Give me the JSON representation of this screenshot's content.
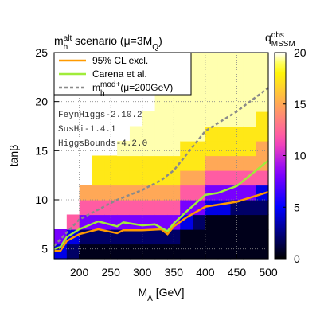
{
  "chart_data": {
    "type": "heatmap",
    "title": [
      {
        "text": "m"
      },
      {
        "text": "h",
        "shift": "sub"
      },
      {
        "text": "alt",
        "shift": "super"
      },
      {
        "text": " scenario (μ=3M"
      },
      {
        "text": "Q",
        "shift": "sub"
      },
      {
        "text": ")"
      }
    ],
    "xlabel": [
      {
        "text": "M"
      },
      {
        "text": "A",
        "shift": "sub"
      },
      {
        "text": " [GeV]"
      }
    ],
    "ylabel": [
      {
        "text": "tanβ"
      }
    ],
    "colorbar_label": [
      {
        "text": "q"
      },
      {
        "text": "obs",
        "shift": "super"
      },
      {
        "text": "MSSM",
        "shift": "sub"
      }
    ],
    "xlim": [
      160,
      500
    ],
    "xticks": [
      200,
      250,
      300,
      350,
      400,
      450,
      500
    ],
    "ylim": [
      4,
      25
    ],
    "yticks": [
      5,
      10,
      15,
      20,
      25
    ],
    "clim": [
      0,
      20
    ],
    "cticks": [
      0,
      5,
      10,
      15,
      20
    ],
    "grid": true,
    "x_edges": [
      160,
      180,
      200,
      220,
      240,
      260,
      280,
      300,
      320,
      340,
      360,
      380,
      400,
      420,
      440,
      460,
      480,
      500
    ],
    "y_edges": [
      4,
      5.5,
      7,
      8.5,
      10,
      11.5,
      13,
      14.5,
      16,
      17.5,
      19,
      20.5,
      22,
      23.5,
      25
    ],
    "z": [
      [
        4.5,
        8,
        null,
        null,
        null,
        null,
        null,
        null,
        null,
        null,
        null,
        null,
        null,
        null
      ],
      [
        2,
        4.5,
        12,
        null,
        null,
        null,
        null,
        null,
        null,
        null,
        null,
        null,
        null,
        null
      ],
      [
        0.5,
        2,
        8,
        12,
        15,
        null,
        null,
        null,
        null,
        null,
        null,
        null,
        null,
        null
      ],
      [
        0.5,
        2,
        8,
        12,
        15,
        17.5,
        17.5,
        null,
        null,
        null,
        null,
        null,
        null,
        null
      ],
      [
        0.5,
        2,
        8,
        12,
        15,
        17.5,
        17.5,
        null,
        null,
        null,
        null,
        null,
        null,
        null
      ],
      [
        0.5,
        2,
        8,
        12,
        15,
        17.5,
        17.5,
        19.5,
        null,
        null,
        null,
        null,
        null,
        null
      ],
      [
        0.5,
        2,
        8,
        12,
        15,
        17.5,
        17.5,
        19.5,
        19.5,
        null,
        null,
        null,
        null,
        null
      ],
      [
        0.5,
        2,
        8,
        12,
        15,
        17.5,
        17.5,
        19.5,
        19.5,
        19.5,
        null,
        null,
        null,
        null
      ],
      [
        0.5,
        2,
        8,
        12,
        15,
        17.5,
        17.5,
        19.5,
        19.5,
        19.5,
        19.5,
        19.5,
        null,
        null
      ],
      [
        0.5,
        2,
        8,
        12,
        15,
        17.5,
        17.5,
        19.5,
        19.5,
        19.5,
        19.5,
        19.5,
        19.5,
        19.5
      ],
      [
        0.5,
        0.5,
        4.5,
        8,
        12,
        15,
        17.5,
        17.5,
        19.5,
        19.5,
        19.5,
        19.5,
        19.5,
        19.5
      ],
      [
        0.5,
        0.5,
        2,
        8,
        12,
        15,
        17.5,
        17.5,
        19.5,
        19.5,
        19.5,
        19.5,
        19.5,
        19.5
      ],
      [
        0.5,
        0.5,
        0.5,
        4.5,
        8,
        12,
        15,
        17.5,
        17.5,
        19.5,
        19.5,
        19.5,
        19.5,
        19.5
      ],
      [
        0.5,
        0.5,
        0.5,
        4.5,
        8,
        12,
        15,
        17.5,
        17.5,
        19.5,
        19.5,
        19.5,
        19.5,
        19.5
      ],
      [
        0.5,
        0.5,
        0.5,
        2,
        8,
        12,
        15,
        17.5,
        17.5,
        19.5,
        19.5,
        19.5,
        19.5,
        19.5
      ],
      [
        0.5,
        0.5,
        0.5,
        2,
        8,
        12,
        15,
        17.5,
        17.5,
        19.5,
        19.5,
        19.5,
        19.5,
        19.5
      ],
      [
        0.5,
        0.5,
        0.5,
        2,
        4.5,
        12,
        15,
        15,
        17.5,
        17.5,
        19.5,
        19.5,
        19.5,
        19.5
      ]
    ],
    "series": [
      {
        "name": [
          {
            "text": "95% CL excl."
          }
        ],
        "color": "#ff9a00",
        "dash": false,
        "x": [
          160,
          170,
          180,
          200,
          230,
          260,
          270,
          300,
          330,
          340,
          350,
          370,
          400,
          450,
          500
        ],
        "values": [
          4.8,
          4.8,
          5.8,
          6.5,
          7,
          6.6,
          6.9,
          6.9,
          7,
          6.5,
          7.3,
          8.2,
          9.3,
          9.8,
          10.8
        ]
      },
      {
        "name": [
          {
            "text": "Carena et al."
          }
        ],
        "color": "#a0ec3a",
        "dash": false,
        "x": [
          160,
          170,
          180,
          200,
          230,
          260,
          270,
          300,
          320,
          340,
          350,
          370,
          400,
          420,
          450,
          500
        ],
        "values": [
          5,
          5.2,
          6.2,
          7,
          7.8,
          7.3,
          7.7,
          7.4,
          7.5,
          6.8,
          7.6,
          8.8,
          10.5,
          10.7,
          11.4,
          14
        ]
      },
      {
        "name": [
          {
            "text": "m"
          },
          {
            "text": "h",
            "shift": "sub"
          },
          {
            "text": "mod+",
            "shift": "super"
          },
          {
            "text": "(μ=200GeV)"
          }
        ],
        "color": "#8a8a8a",
        "dash": true,
        "x": [
          160,
          200,
          230,
          260,
          300,
          330,
          350,
          400,
          450,
          500
        ],
        "values": [
          5.3,
          8,
          9,
          10,
          11,
          12,
          13,
          17,
          19,
          21.4
        ]
      }
    ],
    "annotations": [
      "FeynHiggs-2.10.2",
      "SusHi-1.4.1",
      "HiggsBounds-4.2.0"
    ]
  }
}
